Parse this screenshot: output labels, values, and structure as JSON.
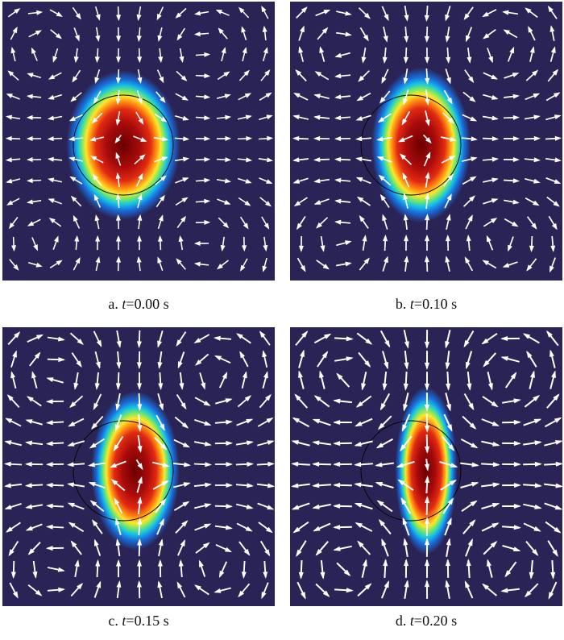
{
  "panels": [
    {
      "caption_prefix": "a. ",
      "var": "t",
      "caption_value": "=0.00 s",
      "aspect": 0.62,
      "shift": 0.0,
      "flow": 0.35
    },
    {
      "caption_prefix": "b. ",
      "var": "t",
      "caption_value": "=0.10 s",
      "aspect": 0.52,
      "shift": 0.25,
      "flow": 0.55
    },
    {
      "caption_prefix": "c. ",
      "var": "t",
      "caption_value": "=0.15 s",
      "aspect": 0.45,
      "shift": 0.3,
      "flow": 0.8
    },
    {
      "caption_prefix": "d. ",
      "var": "t",
      "caption_value": "=0.20 s",
      "aspect": 0.3,
      "shift": 0.38,
      "flow": 1.0
    }
  ],
  "colors": {
    "background": "#2a2456",
    "arrow": "#ffffff",
    "outline": "#000000"
  }
}
